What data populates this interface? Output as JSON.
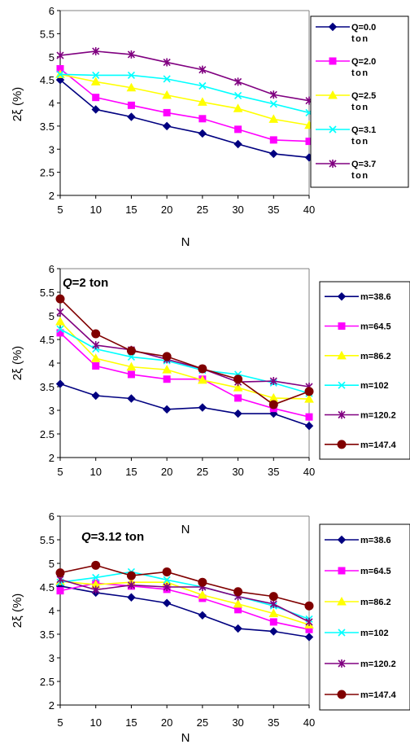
{
  "chart_data": [
    {
      "type": "line",
      "title": "",
      "annotation": "",
      "xlabel": "N",
      "ylabel": "2ξ (%)",
      "x": [
        5,
        10,
        15,
        20,
        25,
        30,
        35,
        40
      ],
      "xlim": [
        5,
        40
      ],
      "ylim": [
        2,
        6
      ],
      "yticks": [
        "2",
        "2.5",
        "3",
        "3.5",
        "4",
        "4.5",
        "5",
        "5.5",
        "6"
      ],
      "xticks": [
        "5",
        "10",
        "15",
        "20",
        "25",
        "30",
        "35",
        "40"
      ],
      "grid": false,
      "legend_position": "right",
      "series": [
        {
          "name": "Q=0.0 ton",
          "label_line1": "Q=0.0",
          "label_line2": "ton",
          "color": "#000080",
          "marker": "diamond",
          "values": [
            4.5,
            3.86,
            3.7,
            3.5,
            3.34,
            3.11,
            2.9,
            2.82
          ]
        },
        {
          "name": "Q=2.0 ton",
          "label_line1": "Q=2.0",
          "label_line2": "ton",
          "color": "#ff00ff",
          "marker": "square",
          "values": [
            4.74,
            4.12,
            3.95,
            3.79,
            3.66,
            3.43,
            3.2,
            3.17
          ]
        },
        {
          "name": "Q=2.5 ton",
          "label_line1": "Q=2.5",
          "label_line2": "ton",
          "color": "#ffff00",
          "marker": "triangle",
          "values": [
            4.62,
            4.46,
            4.33,
            4.17,
            4.02,
            3.88,
            3.65,
            3.52
          ]
        },
        {
          "name": "Q=3.1 ton",
          "label_line1": "Q=3.1",
          "label_line2": "ton",
          "color": "#00ffff",
          "marker": "x",
          "values": [
            4.62,
            4.6,
            4.6,
            4.52,
            4.37,
            4.16,
            3.98,
            3.79
          ]
        },
        {
          "name": "Q=3.7 ton",
          "label_line1": "Q=3.7",
          "label_line2": "ton",
          "color": "#800080",
          "marker": "star",
          "values": [
            5.03,
            5.12,
            5.05,
            4.88,
            4.72,
            4.46,
            4.18,
            4.05
          ]
        }
      ]
    },
    {
      "type": "line",
      "title": "",
      "annotation": "Q=2 ton",
      "annotation_q": "Q",
      "annotation_rest": "=2 ton",
      "xlabel": "N",
      "ylabel": "2ξ (%)",
      "x": [
        5,
        10,
        15,
        20,
        25,
        30,
        35,
        40
      ],
      "xlim": [
        5,
        40
      ],
      "ylim": [
        2,
        6
      ],
      "yticks": [
        "2",
        "2.5",
        "3",
        "3.5",
        "4",
        "4.5",
        "5",
        "5.5",
        "6"
      ],
      "xticks": [
        "5",
        "10",
        "15",
        "20",
        "25",
        "30",
        "35",
        "40"
      ],
      "grid": false,
      "legend_position": "right",
      "series": [
        {
          "name": "m=38.6",
          "color": "#000080",
          "marker": "diamond",
          "values": [
            3.56,
            3.31,
            3.25,
            3.02,
            3.06,
            2.93,
            2.93,
            2.67
          ]
        },
        {
          "name": "m=64.5",
          "color": "#ff00ff",
          "marker": "square",
          "values": [
            4.64,
            3.94,
            3.76,
            3.66,
            3.66,
            3.26,
            3.04,
            2.86
          ]
        },
        {
          "name": "m=86.2",
          "color": "#ffff00",
          "marker": "triangle",
          "values": [
            4.88,
            4.1,
            3.92,
            3.86,
            3.64,
            3.48,
            3.26,
            3.24
          ]
        },
        {
          "name": "m=102",
          "color": "#00ffff",
          "marker": "x",
          "values": [
            4.72,
            4.3,
            4.13,
            4.05,
            3.85,
            3.76,
            3.58,
            3.36
          ]
        },
        {
          "name": "m=120.2",
          "color": "#800080",
          "marker": "star",
          "values": [
            5.08,
            4.38,
            4.28,
            4.08,
            3.88,
            3.6,
            3.62,
            3.5
          ]
        },
        {
          "name": "m=147.4",
          "color": "#800000",
          "marker": "circle",
          "values": [
            5.36,
            4.62,
            4.26,
            4.14,
            3.88,
            3.66,
            3.12,
            3.4
          ]
        }
      ]
    },
    {
      "type": "line",
      "title": "",
      "annotation": "Q=3.12 ton",
      "annotation_q": "Q",
      "annotation_rest": "=3.12 ton",
      "xlabel": "N",
      "ylabel": "2ξ (%)",
      "x": [
        5,
        10,
        15,
        20,
        25,
        30,
        35,
        40
      ],
      "xlim": [
        5,
        40
      ],
      "ylim": [
        2,
        6
      ],
      "yticks": [
        "2",
        "2.5",
        "3",
        "3.5",
        "4",
        "4.5",
        "5",
        "5.5",
        "6"
      ],
      "xticks": [
        "5",
        "10",
        "15",
        "20",
        "25",
        "30",
        "35",
        "40"
      ],
      "grid": false,
      "legend_position": "right",
      "series": [
        {
          "name": "m=38.6",
          "color": "#000080",
          "marker": "diamond",
          "values": [
            4.52,
            4.38,
            4.28,
            4.16,
            3.9,
            3.62,
            3.56,
            3.44
          ]
        },
        {
          "name": "m=64.5",
          "color": "#ff00ff",
          "marker": "square",
          "values": [
            4.42,
            4.58,
            4.52,
            4.45,
            4.26,
            4.02,
            3.76,
            3.6
          ]
        },
        {
          "name": "m=86.2",
          "color": "#ffff00",
          "marker": "triangle",
          "values": [
            4.62,
            4.55,
            4.6,
            4.6,
            4.33,
            4.14,
            3.94,
            3.7
          ]
        },
        {
          "name": "m=102",
          "color": "#00ffff",
          "marker": "x",
          "values": [
            4.6,
            4.7,
            4.82,
            4.65,
            4.5,
            4.3,
            4.1,
            3.82
          ]
        },
        {
          "name": "m=120.2",
          "color": "#800080",
          "marker": "star",
          "values": [
            4.66,
            4.44,
            4.54,
            4.5,
            4.5,
            4.3,
            4.14,
            3.76
          ]
        },
        {
          "name": "m=147.4",
          "color": "#800000",
          "marker": "circle",
          "values": [
            4.8,
            4.96,
            4.74,
            4.82,
            4.6,
            4.4,
            4.3,
            4.1
          ]
        }
      ]
    }
  ]
}
